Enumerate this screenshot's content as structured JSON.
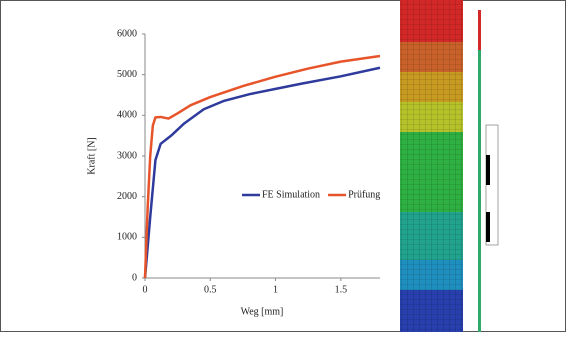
{
  "chart_data": {
    "type": "line",
    "xlabel": "Weg [mm]",
    "ylabel": "Kraft [N]",
    "xlim": [
      0,
      1.8
    ],
    "xticks": [
      0,
      0.5,
      1,
      1.5
    ],
    "ylim": [
      0,
      6000
    ],
    "yticks": [
      0,
      1000,
      2000,
      3000,
      4000,
      5000,
      6000
    ],
    "series": [
      {
        "name": "FE Simulation",
        "color": "#2e3a9c",
        "x": [
          0,
          0.04,
          0.08,
          0.12,
          0.2,
          0.3,
          0.45,
          0.6,
          0.8,
          1.0,
          1.2,
          1.5,
          1.8
        ],
        "values": [
          0,
          1500,
          2900,
          3300,
          3500,
          3800,
          4150,
          4350,
          4520,
          4650,
          4780,
          4960,
          5170
        ]
      },
      {
        "name": "Prüfung",
        "color": "#e8542a",
        "x": [
          0,
          0.02,
          0.04,
          0.06,
          0.08,
          0.12,
          0.18,
          0.25,
          0.35,
          0.5,
          0.75,
          1.0,
          1.25,
          1.5,
          1.8
        ],
        "values": [
          0,
          1700,
          3000,
          3750,
          3950,
          3960,
          3920,
          4050,
          4250,
          4450,
          4720,
          4950,
          5150,
          5320,
          5460
        ]
      }
    ],
    "legend": "center"
  }
}
